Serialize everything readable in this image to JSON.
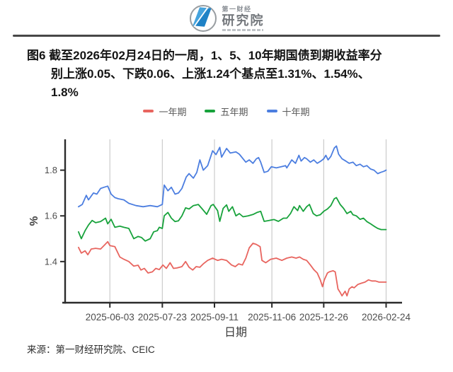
{
  "header": {
    "brand_top": "第一财经",
    "brand_bottom": "研究院"
  },
  "figure": {
    "title_lines": [
      "图6  截至2026年02月24日的一周，1、5、10年期国债到期收益率分",
      "别上涨0.05、下跌0.06、上涨1.24个基点至1.31%、1.54%、",
      "1.8%"
    ]
  },
  "source": {
    "text": "来源：第一财经研究院、CEIC"
  },
  "chart_data": {
    "type": "line",
    "title": "图6 截至2026年02月24日的一周，1、5、10年期国债到期收益率分别上涨0.05、下跌0.06、上涨1.24个基点至1.31%、1.54%、1.8%",
    "xlabel": "日期",
    "ylabel": "%",
    "ylim": [
      1.22,
      1.935
    ],
    "y_ticks": [
      1.4,
      1.6,
      1.8
    ],
    "grid": "vertical-only",
    "legend_position": "top-center",
    "x_ticks": [
      {
        "label": "2025-06-03",
        "f": 0.11
      },
      {
        "label": "2025-07-23",
        "f": 0.279
      },
      {
        "label": "2025-09-11",
        "f": 0.447
      },
      {
        "label": "2025-11-06",
        "f": 0.632
      },
      {
        "label": "2025-12-26",
        "f": 0.799
      },
      {
        "label": "2026-02-24",
        "f": 1.0
      }
    ],
    "style": {
      "axis_color": "#2B2B2B",
      "grid_color": "#CBCBCB",
      "tick_text_color": "#4D4D4D",
      "axis_title_color": "#3C3C3C"
    },
    "series": [
      {
        "name": "一年期",
        "color": "#E8655F",
        "last_value": "1.31%",
        "points": [
          [
            0.009,
            1.462
          ],
          [
            0.018,
            1.437
          ],
          [
            0.03,
            1.447
          ],
          [
            0.039,
            1.43
          ],
          [
            0.05,
            1.455
          ],
          [
            0.064,
            1.458
          ],
          [
            0.08,
            1.455
          ],
          [
            0.091,
            1.47
          ],
          [
            0.103,
            1.487
          ],
          [
            0.11,
            1.47
          ],
          [
            0.126,
            1.465
          ],
          [
            0.142,
            1.42
          ],
          [
            0.155,
            1.41
          ],
          [
            0.171,
            1.4
          ],
          [
            0.187,
            1.38
          ],
          [
            0.201,
            1.384
          ],
          [
            0.21,
            1.363
          ],
          [
            0.221,
            1.37
          ],
          [
            0.233,
            1.35
          ],
          [
            0.247,
            1.355
          ],
          [
            0.258,
            1.37
          ],
          [
            0.269,
            1.365
          ],
          [
            0.281,
            1.385
          ],
          [
            0.292,
            1.37
          ],
          [
            0.304,
            1.395
          ],
          [
            0.315,
            1.37
          ],
          [
            0.326,
            1.372
          ],
          [
            0.342,
            1.378
          ],
          [
            0.354,
            1.4
          ],
          [
            0.365,
            1.375
          ],
          [
            0.377,
            1.363
          ],
          [
            0.388,
            1.378
          ],
          [
            0.4,
            1.375
          ],
          [
            0.411,
            1.39
          ],
          [
            0.425,
            1.405
          ],
          [
            0.441,
            1.415
          ],
          [
            0.457,
            1.405
          ],
          [
            0.47,
            1.41
          ],
          [
            0.486,
            1.405
          ],
          [
            0.502,
            1.385
          ],
          [
            0.514,
            1.378
          ],
          [
            0.525,
            1.39
          ],
          [
            0.537,
            1.385
          ],
          [
            0.548,
            1.415
          ],
          [
            0.559,
            1.46
          ],
          [
            0.571,
            1.48
          ],
          [
            0.582,
            1.475
          ],
          [
            0.594,
            1.465
          ],
          [
            0.6,
            1.405
          ],
          [
            0.612,
            1.395
          ],
          [
            0.628,
            1.41
          ],
          [
            0.646,
            1.415
          ],
          [
            0.664,
            1.405
          ],
          [
            0.68,
            1.415
          ],
          [
            0.696,
            1.42
          ],
          [
            0.71,
            1.415
          ],
          [
            0.721,
            1.42
          ],
          [
            0.733,
            1.41
          ],
          [
            0.744,
            1.405
          ],
          [
            0.756,
            1.385
          ],
          [
            0.767,
            1.365
          ],
          [
            0.778,
            1.35
          ],
          [
            0.788,
            1.32
          ],
          [
            0.795,
            1.29
          ],
          [
            0.801,
            1.32
          ],
          [
            0.811,
            1.35
          ],
          [
            0.817,
            1.355
          ],
          [
            0.829,
            1.36
          ],
          [
            0.836,
            1.355
          ],
          [
            0.845,
            1.28
          ],
          [
            0.852,
            1.265
          ],
          [
            0.858,
            1.25
          ],
          [
            0.868,
            1.27
          ],
          [
            0.874,
            1.25
          ],
          [
            0.881,
            1.28
          ],
          [
            0.89,
            1.29
          ],
          [
            0.897,
            1.285
          ],
          [
            0.909,
            1.3
          ],
          [
            0.92,
            1.305
          ],
          [
            0.932,
            1.31
          ],
          [
            0.943,
            1.32
          ],
          [
            0.954,
            1.315
          ],
          [
            0.966,
            1.315
          ],
          [
            0.977,
            1.31
          ],
          [
            0.989,
            1.31
          ],
          [
            1.0,
            1.31
          ]
        ]
      },
      {
        "name": "五年期",
        "color": "#17A23B",
        "last_value": "1.54%",
        "points": [
          [
            0.009,
            1.53
          ],
          [
            0.018,
            1.5
          ],
          [
            0.03,
            1.535
          ],
          [
            0.041,
            1.56
          ],
          [
            0.053,
            1.58
          ],
          [
            0.064,
            1.57
          ],
          [
            0.08,
            1.575
          ],
          [
            0.096,
            1.59
          ],
          [
            0.103,
            1.565
          ],
          [
            0.114,
            1.585
          ],
          [
            0.126,
            1.55
          ],
          [
            0.142,
            1.555
          ],
          [
            0.155,
            1.55
          ],
          [
            0.171,
            1.545
          ],
          [
            0.187,
            1.5
          ],
          [
            0.201,
            1.51
          ],
          [
            0.212,
            1.505
          ],
          [
            0.224,
            1.49
          ],
          [
            0.24,
            1.5
          ],
          [
            0.251,
            1.53
          ],
          [
            0.263,
            1.535
          ],
          [
            0.269,
            1.55
          ],
          [
            0.279,
            1.545
          ],
          [
            0.285,
            1.6
          ],
          [
            0.297,
            1.615
          ],
          [
            0.308,
            1.59
          ],
          [
            0.32,
            1.575
          ],
          [
            0.331,
            1.578
          ],
          [
            0.342,
            1.6
          ],
          [
            0.354,
            1.635
          ],
          [
            0.365,
            1.63
          ],
          [
            0.379,
            1.645
          ],
          [
            0.395,
            1.65
          ],
          [
            0.406,
            1.633
          ],
          [
            0.422,
            1.607
          ],
          [
            0.436,
            1.645
          ],
          [
            0.443,
            1.65
          ],
          [
            0.457,
            1.623
          ],
          [
            0.464,
            1.576
          ],
          [
            0.475,
            1.633
          ],
          [
            0.486,
            1.648
          ],
          [
            0.493,
            1.62
          ],
          [
            0.505,
            1.64
          ],
          [
            0.516,
            1.6
          ],
          [
            0.527,
            1.61
          ],
          [
            0.539,
            1.596
          ],
          [
            0.555,
            1.6
          ],
          [
            0.571,
            1.606
          ],
          [
            0.584,
            1.615
          ],
          [
            0.596,
            1.62
          ],
          [
            0.607,
            1.576
          ],
          [
            0.623,
            1.58
          ],
          [
            0.639,
            1.584
          ],
          [
            0.653,
            1.576
          ],
          [
            0.669,
            1.59
          ],
          [
            0.68,
            1.59
          ],
          [
            0.692,
            1.61
          ],
          [
            0.703,
            1.64
          ],
          [
            0.715,
            1.623
          ],
          [
            0.721,
            1.645
          ],
          [
            0.733,
            1.62
          ],
          [
            0.744,
            1.64
          ],
          [
            0.753,
            1.65
          ],
          [
            0.765,
            1.61
          ],
          [
            0.776,
            1.6
          ],
          [
            0.788,
            1.605
          ],
          [
            0.799,
            1.62
          ],
          [
            0.811,
            1.63
          ],
          [
            0.822,
            1.645
          ],
          [
            0.833,
            1.675
          ],
          [
            0.84,
            1.68
          ],
          [
            0.852,
            1.65
          ],
          [
            0.863,
            1.633
          ],
          [
            0.874,
            1.61
          ],
          [
            0.886,
            1.62
          ],
          [
            0.893,
            1.605
          ],
          [
            0.904,
            1.6
          ],
          [
            0.916,
            1.585
          ],
          [
            0.927,
            1.59
          ],
          [
            0.938,
            1.575
          ],
          [
            0.95,
            1.565
          ],
          [
            0.961,
            1.555
          ],
          [
            0.973,
            1.545
          ],
          [
            0.984,
            1.54
          ],
          [
            1.0,
            1.54
          ]
        ]
      },
      {
        "name": "十年期",
        "color": "#4C7EE0",
        "last_value": "1.8%",
        "points": [
          [
            0.009,
            1.64
          ],
          [
            0.021,
            1.65
          ],
          [
            0.034,
            1.69
          ],
          [
            0.041,
            1.67
          ],
          [
            0.057,
            1.7
          ],
          [
            0.068,
            1.695
          ],
          [
            0.08,
            1.72
          ],
          [
            0.091,
            1.725
          ],
          [
            0.103,
            1.73
          ],
          [
            0.114,
            1.695
          ],
          [
            0.126,
            1.68
          ],
          [
            0.137,
            1.675
          ],
          [
            0.155,
            1.67
          ],
          [
            0.171,
            1.655
          ],
          [
            0.194,
            1.645
          ],
          [
            0.217,
            1.64
          ],
          [
            0.24,
            1.645
          ],
          [
            0.263,
            1.64
          ],
          [
            0.279,
            1.65
          ],
          [
            0.285,
            1.735
          ],
          [
            0.297,
            1.71
          ],
          [
            0.308,
            1.725
          ],
          [
            0.32,
            1.695
          ],
          [
            0.331,
            1.7
          ],
          [
            0.342,
            1.72
          ],
          [
            0.356,
            1.77
          ],
          [
            0.365,
            1.785
          ],
          [
            0.379,
            1.765
          ],
          [
            0.39,
            1.79
          ],
          [
            0.4,
            1.845
          ],
          [
            0.411,
            1.8
          ],
          [
            0.425,
            1.82
          ],
          [
            0.441,
            1.885
          ],
          [
            0.452,
            1.868
          ],
          [
            0.464,
            1.9
          ],
          [
            0.47,
            1.857
          ],
          [
            0.486,
            1.895
          ],
          [
            0.498,
            1.875
          ],
          [
            0.516,
            1.88
          ],
          [
            0.527,
            1.87
          ],
          [
            0.548,
            1.835
          ],
          [
            0.559,
            1.845
          ],
          [
            0.571,
            1.83
          ],
          [
            0.582,
            1.85
          ],
          [
            0.589,
            1.855
          ],
          [
            0.596,
            1.835
          ],
          [
            0.607,
            1.79
          ],
          [
            0.619,
            1.795
          ],
          [
            0.63,
            1.815
          ],
          [
            0.646,
            1.81
          ],
          [
            0.662,
            1.815
          ],
          [
            0.676,
            1.82
          ],
          [
            0.68,
            1.81
          ],
          [
            0.696,
            1.845
          ],
          [
            0.708,
            1.83
          ],
          [
            0.719,
            1.865
          ],
          [
            0.726,
            1.84
          ],
          [
            0.737,
            1.855
          ],
          [
            0.744,
            1.85
          ],
          [
            0.756,
            1.835
          ],
          [
            0.767,
            1.845
          ],
          [
            0.778,
            1.83
          ],
          [
            0.79,
            1.84
          ],
          [
            0.799,
            1.85
          ],
          [
            0.806,
            1.865
          ],
          [
            0.813,
            1.845
          ],
          [
            0.822,
            1.86
          ],
          [
            0.833,
            1.897
          ],
          [
            0.84,
            1.906
          ],
          [
            0.847,
            1.87
          ],
          [
            0.858,
            1.85
          ],
          [
            0.87,
            1.84
          ],
          [
            0.881,
            1.83
          ],
          [
            0.893,
            1.835
          ],
          [
            0.904,
            1.82
          ],
          [
            0.916,
            1.826
          ],
          [
            0.927,
            1.815
          ],
          [
            0.938,
            1.82
          ],
          [
            0.95,
            1.805
          ],
          [
            0.961,
            1.8
          ],
          [
            0.973,
            1.785
          ],
          [
            0.982,
            1.79
          ],
          [
            0.993,
            1.795
          ],
          [
            1.0,
            1.8
          ]
        ]
      }
    ]
  }
}
